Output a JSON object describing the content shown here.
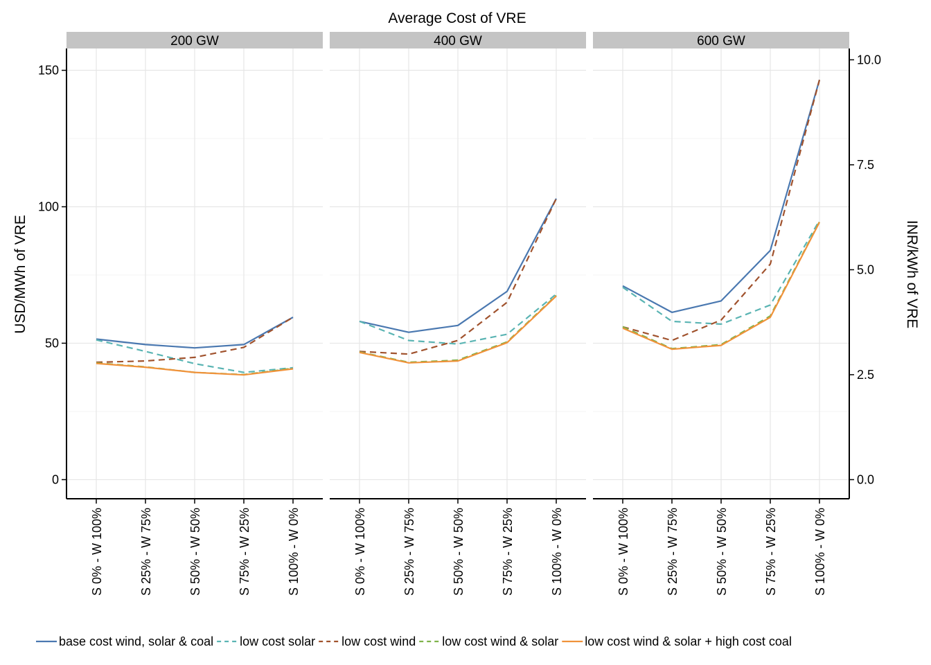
{
  "chart_data": {
    "type": "line",
    "title": "Average Cost of VRE",
    "ylabel": "USD/MWh of VRE",
    "ylabel_right": "INR/kWh of VRE",
    "ylim": [
      -7,
      158
    ],
    "yticks": [
      0,
      50,
      100,
      150
    ],
    "yticks_right": [
      "0.0",
      "2.5",
      "5.0",
      "7.5",
      "10.0"
    ],
    "yticks_right_values": [
      0,
      38.46,
      76.92,
      115.38,
      153.85
    ],
    "grid": true,
    "legend_position": "bottom",
    "categories": [
      "S 0% - W 100%",
      "S 25% - W 75%",
      "S 50% - W 50%",
      "S 75% - W 25%",
      "S 100% - W 0%"
    ],
    "series_styles": [
      {
        "name": "base cost wind, solar & coal",
        "color": "#4a78b0",
        "dash": ""
      },
      {
        "name": "low cost solar",
        "color": "#5ab4b3",
        "dash": "9,6"
      },
      {
        "name": "low cost wind",
        "color": "#a0522d",
        "dash": "9,6"
      },
      {
        "name": "low cost wind & solar",
        "color": "#7fb24a",
        "dash": "9,6"
      },
      {
        "name": "low cost wind & solar + high cost coal",
        "color": "#f0923a",
        "dash": ""
      }
    ],
    "panels": [
      {
        "label": "200 GW",
        "series": [
          {
            "name": "base cost wind, solar & coal",
            "values": [
              51.5,
              49.5,
              48.3,
              49.5,
              59.5
            ]
          },
          {
            "name": "low cost solar",
            "values": [
              51.2,
              47.0,
              42.5,
              39.3,
              41.0
            ]
          },
          {
            "name": "low cost wind",
            "values": [
              43.0,
              43.5,
              44.8,
              48.5,
              59.5
            ]
          },
          {
            "name": "low cost wind & solar",
            "values": [
              42.8,
              41.3,
              39.3,
              38.5,
              40.8
            ]
          },
          {
            "name": "low cost wind & solar + high cost coal",
            "values": [
              42.6,
              41.2,
              39.3,
              38.4,
              40.6
            ]
          }
        ]
      },
      {
        "label": "400 GW",
        "series": [
          {
            "name": "base cost wind, solar & coal",
            "values": [
              58.0,
              54.0,
              56.5,
              69.0,
              103.0
            ]
          },
          {
            "name": "low cost solar",
            "values": [
              58.0,
              51.0,
              49.7,
              53.3,
              68.0
            ]
          },
          {
            "name": "low cost wind",
            "values": [
              47.0,
              46.0,
              51.0,
              65.0,
              103.0
            ]
          },
          {
            "name": "low cost wind & solar",
            "values": [
              46.8,
              43.0,
              43.8,
              50.5,
              67.5
            ]
          },
          {
            "name": "low cost wind & solar + high cost coal",
            "values": [
              46.6,
              42.8,
              43.5,
              50.2,
              67.3
            ]
          }
        ]
      },
      {
        "label": "600 GW",
        "series": [
          {
            "name": "base cost wind, solar & coal",
            "values": [
              71.0,
              61.3,
              65.5,
              84.0,
              146.5
            ]
          },
          {
            "name": "low cost solar",
            "values": [
              70.5,
              58.0,
              57.0,
              64.0,
              95.0
            ]
          },
          {
            "name": "low cost wind",
            "values": [
              56.0,
              51.0,
              58.5,
              79.0,
              146.5
            ]
          },
          {
            "name": "low cost wind & solar",
            "values": [
              56.0,
              48.0,
              49.5,
              60.0,
              94.5
            ]
          },
          {
            "name": "low cost wind & solar + high cost coal",
            "values": [
              55.5,
              47.8,
              49.2,
              59.5,
              94.3
            ]
          }
        ]
      }
    ]
  }
}
